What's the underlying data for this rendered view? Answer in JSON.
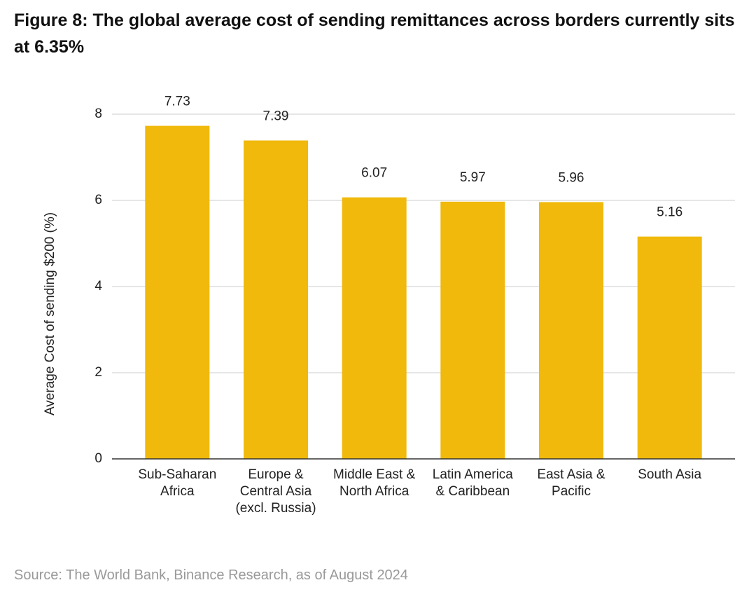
{
  "chart_data": {
    "type": "bar",
    "title": "Figure 8: The global average cost of sending remittances across borders currently sits at 6.35%",
    "y_label": "Average Cost of sending $200 (%)",
    "source": "Source: The World Bank, Binance Research, as of August 2024",
    "categories": [
      "Sub-Saharan\nAfrica",
      "Europe &\nCentral Asia\n(excl. Russia)",
      "Middle East &\nNorth Africa",
      "Latin America\n& Caribbean",
      "East Asia &\nPacific",
      "South Asia"
    ],
    "values": [
      7.73,
      7.39,
      6.07,
      5.97,
      5.96,
      5.16
    ],
    "color": "#f0b90b",
    "ylim": [
      0,
      8
    ],
    "yticks": [
      0,
      2,
      4,
      6,
      8
    ],
    "grid": true
  }
}
